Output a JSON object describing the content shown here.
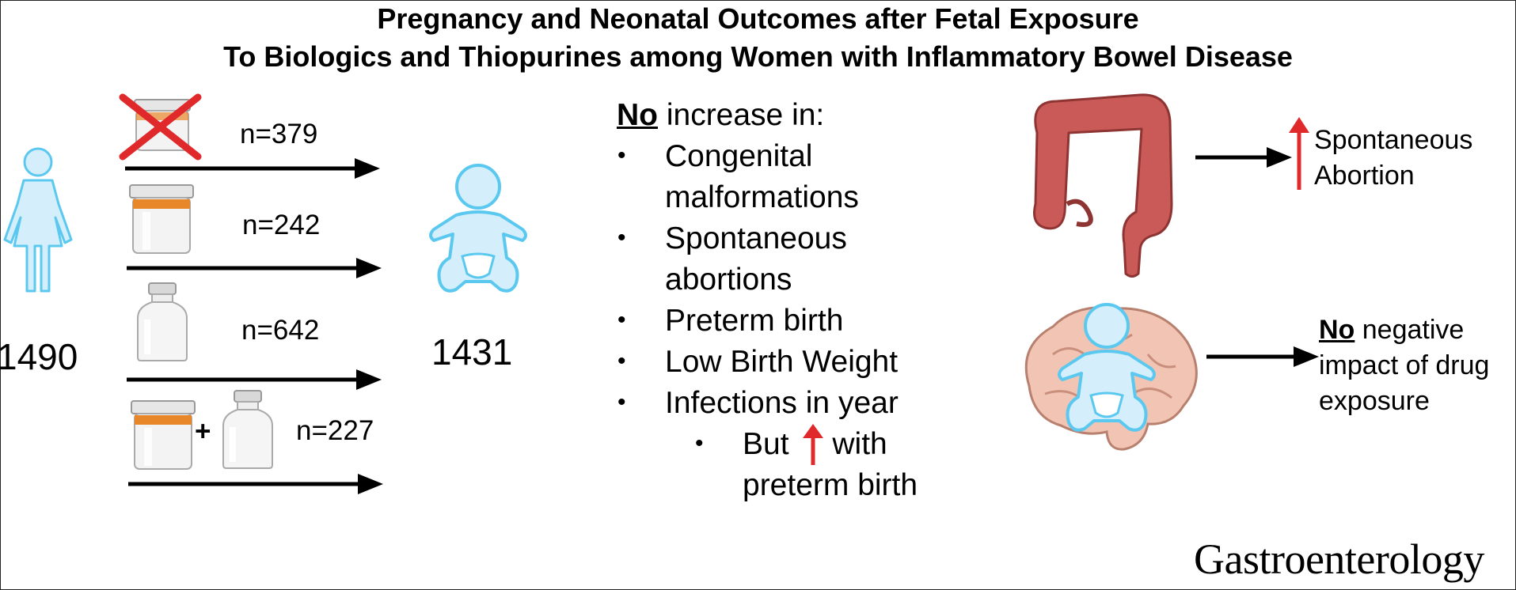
{
  "title": {
    "line1": "Pregnancy and Neonatal Outcomes after Fetal Exposure",
    "line2": "To Biologics and Thiopurines among Women with Inflammatory Bowel Disease"
  },
  "mothers_count": "1490",
  "infants_count": "1431",
  "exposure_groups": [
    {
      "drug": "none (crossed-out jar)",
      "n_label": "n=379"
    },
    {
      "drug": "thiopurine jar",
      "n_label": "n=242"
    },
    {
      "drug": "biologic vial",
      "n_label": "n=642"
    },
    {
      "drug": "jar + vial",
      "n_label": "n=227",
      "plus": "+"
    }
  ],
  "findings": {
    "heading_emph": "No",
    "heading_rest": " increase in:",
    "items": [
      {
        "line1": "Congenital",
        "line2": "malformations"
      },
      {
        "line1": "Spontaneous",
        "line2": "abortions"
      },
      {
        "line1": "Preterm birth"
      },
      {
        "line1": "Low Birth Weight"
      },
      {
        "line1": "Infections in year"
      }
    ],
    "sub_item": {
      "pre": "But",
      "post": " with",
      "line2": "preterm birth"
    }
  },
  "outcome_colon": {
    "line1": "Spontaneous",
    "line2": "Abortion"
  },
  "outcome_brain": {
    "emph": "No",
    "rest": " negative",
    "line2": "impact of drug",
    "line3": "exposure"
  },
  "journal": "Gastroenterology",
  "colors": {
    "figure_outline": "#5bc8f0",
    "figure_fill": "#d4effb",
    "cross": "#e0292b",
    "up_arrow": "#e0292b",
    "jar_cap": "#e8862a",
    "colon": "#c95a58",
    "brain": "#f2c4b4"
  },
  "icons": [
    "woman-icon",
    "baby-icon",
    "jar-icon",
    "vial-icon",
    "colon-icon",
    "brain-icon",
    "up-arrow-icon"
  ]
}
